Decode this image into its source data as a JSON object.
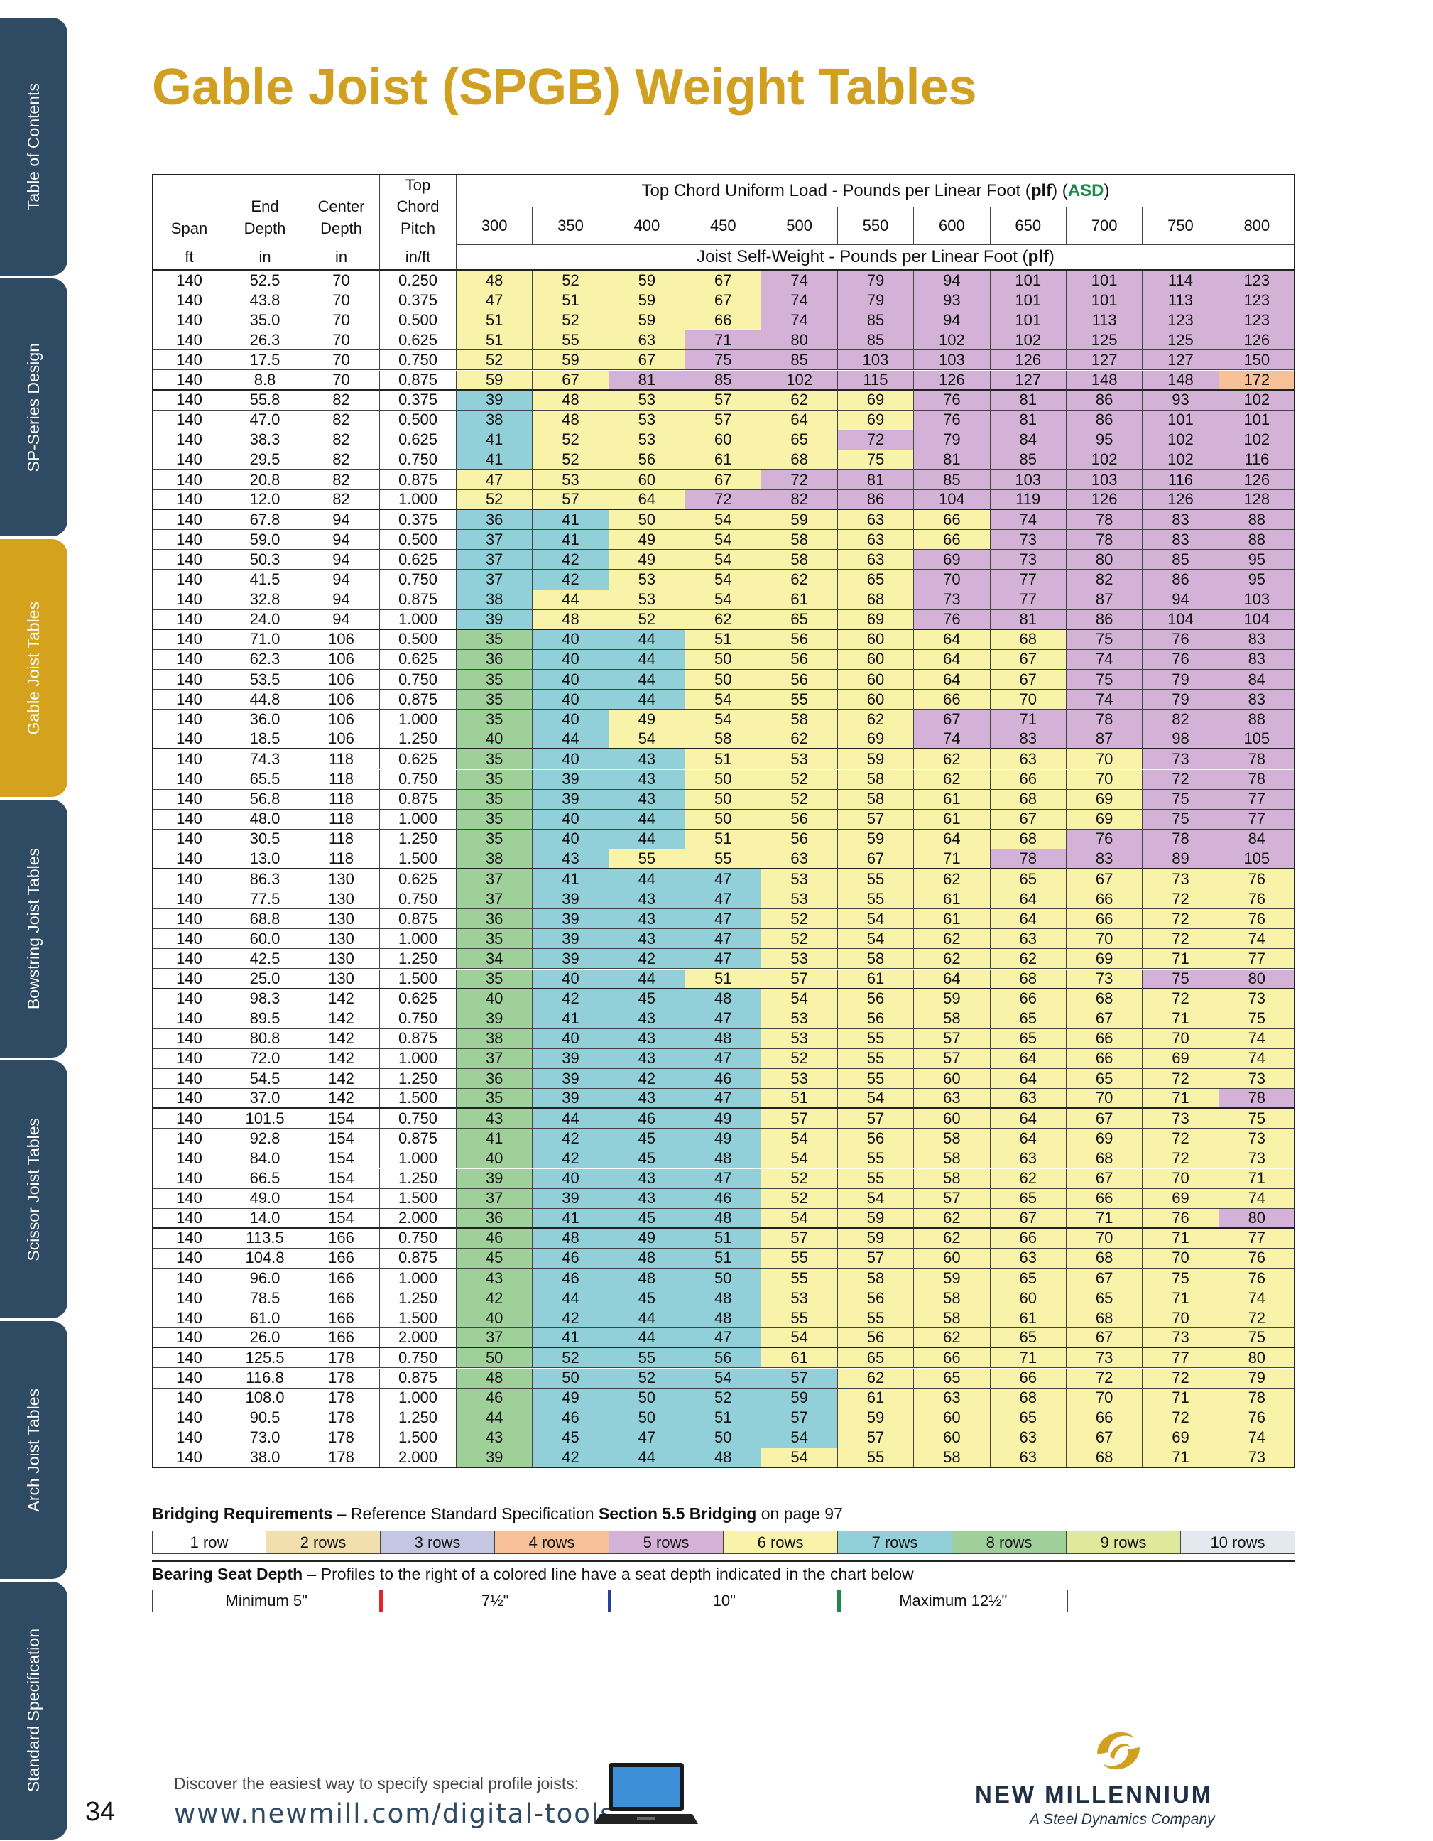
{
  "sidebar": {
    "tabs": [
      "Table of Contents",
      "SP-Series Design",
      "Gable Joist Tables",
      "Bowstring Joist Tables",
      "Scissor Joist Tables",
      "Arch Joist Tables",
      "Standard Specification"
    ],
    "active": 2
  },
  "header": {
    "title": "Gable Joist (SPGB) Weight Tables"
  },
  "table": {
    "left_headers": [
      {
        "lines": [
          "Span"
        ],
        "unit": "ft"
      },
      {
        "lines": [
          "End",
          "Depth"
        ],
        "unit": "in"
      },
      {
        "lines": [
          "Center",
          "Depth"
        ],
        "unit": "in"
      },
      {
        "lines": [
          "Top",
          "Chord",
          "Pitch"
        ],
        "unit": "in/ft"
      }
    ],
    "load_header": [
      "Top Chord Uniform Load - Pounds per Linear Foot (",
      "plf",
      ") (",
      "ASD",
      ")"
    ],
    "loads": [
      "300",
      "350",
      "400",
      "450",
      "500",
      "550",
      "600",
      "650",
      "700",
      "750",
      "800"
    ],
    "self_weight_header": [
      "Joist Self-Weight - Pounds per Linear Foot (",
      "plf",
      ")"
    ],
    "rows": [
      [
        "140",
        "52.5",
        "70",
        "0.250",
        "48",
        "52",
        "59",
        "67",
        "74",
        "79",
        "94",
        "101",
        "101",
        "114",
        "123"
      ],
      [
        "140",
        "43.8",
        "70",
        "0.375",
        "47",
        "51",
        "59",
        "67",
        "74",
        "79",
        "93",
        "101",
        "101",
        "113",
        "123"
      ],
      [
        "140",
        "35.0",
        "70",
        "0.500",
        "51",
        "52",
        "59",
        "66",
        "74",
        "85",
        "94",
        "101",
        "113",
        "123",
        "123"
      ],
      [
        "140",
        "26.3",
        "70",
        "0.625",
        "51",
        "55",
        "63",
        "71",
        "80",
        "85",
        "102",
        "102",
        "125",
        "125",
        "126"
      ],
      [
        "140",
        "17.5",
        "70",
        "0.750",
        "52",
        "59",
        "67",
        "75",
        "85",
        "103",
        "103",
        "126",
        "127",
        "127",
        "150"
      ],
      [
        "140",
        "8.8",
        "70",
        "0.875",
        "59",
        "67",
        "81",
        "85",
        "102",
        "115",
        "126",
        "127",
        "148",
        "148",
        "172"
      ],
      [
        "140",
        "55.8",
        "82",
        "0.375",
        "39",
        "48",
        "53",
        "57",
        "62",
        "69",
        "76",
        "81",
        "86",
        "93",
        "102"
      ],
      [
        "140",
        "47.0",
        "82",
        "0.500",
        "38",
        "48",
        "53",
        "57",
        "64",
        "69",
        "76",
        "81",
        "86",
        "101",
        "101"
      ],
      [
        "140",
        "38.3",
        "82",
        "0.625",
        "41",
        "52",
        "53",
        "60",
        "65",
        "72",
        "79",
        "84",
        "95",
        "102",
        "102"
      ],
      [
        "140",
        "29.5",
        "82",
        "0.750",
        "41",
        "52",
        "56",
        "61",
        "68",
        "75",
        "81",
        "85",
        "102",
        "102",
        "116"
      ],
      [
        "140",
        "20.8",
        "82",
        "0.875",
        "47",
        "53",
        "60",
        "67",
        "72",
        "81",
        "85",
        "103",
        "103",
        "116",
        "126"
      ],
      [
        "140",
        "12.0",
        "82",
        "1.000",
        "52",
        "57",
        "64",
        "72",
        "82",
        "86",
        "104",
        "119",
        "126",
        "126",
        "128"
      ],
      [
        "140",
        "67.8",
        "94",
        "0.375",
        "36",
        "41",
        "50",
        "54",
        "59",
        "63",
        "66",
        "74",
        "78",
        "83",
        "88"
      ],
      [
        "140",
        "59.0",
        "94",
        "0.500",
        "37",
        "41",
        "49",
        "54",
        "58",
        "63",
        "66",
        "73",
        "78",
        "83",
        "88"
      ],
      [
        "140",
        "50.3",
        "94",
        "0.625",
        "37",
        "42",
        "49",
        "54",
        "58",
        "63",
        "69",
        "73",
        "80",
        "85",
        "95"
      ],
      [
        "140",
        "41.5",
        "94",
        "0.750",
        "37",
        "42",
        "53",
        "54",
        "62",
        "65",
        "70",
        "77",
        "82",
        "86",
        "95"
      ],
      [
        "140",
        "32.8",
        "94",
        "0.875",
        "38",
        "44",
        "53",
        "54",
        "61",
        "68",
        "73",
        "77",
        "87",
        "94",
        "103"
      ],
      [
        "140",
        "24.0",
        "94",
        "1.000",
        "39",
        "48",
        "52",
        "62",
        "65",
        "69",
        "76",
        "81",
        "86",
        "104",
        "104"
      ],
      [
        "140",
        "71.0",
        "106",
        "0.500",
        "35",
        "40",
        "44",
        "51",
        "56",
        "60",
        "64",
        "68",
        "75",
        "76",
        "83"
      ],
      [
        "140",
        "62.3",
        "106",
        "0.625",
        "36",
        "40",
        "44",
        "50",
        "56",
        "60",
        "64",
        "67",
        "74",
        "76",
        "83"
      ],
      [
        "140",
        "53.5",
        "106",
        "0.750",
        "35",
        "40",
        "44",
        "50",
        "56",
        "60",
        "64",
        "67",
        "75",
        "79",
        "84"
      ],
      [
        "140",
        "44.8",
        "106",
        "0.875",
        "35",
        "40",
        "44",
        "54",
        "55",
        "60",
        "66",
        "70",
        "74",
        "79",
        "83"
      ],
      [
        "140",
        "36.0",
        "106",
        "1.000",
        "35",
        "40",
        "49",
        "54",
        "58",
        "62",
        "67",
        "71",
        "78",
        "82",
        "88"
      ],
      [
        "140",
        "18.5",
        "106",
        "1.250",
        "40",
        "44",
        "54",
        "58",
        "62",
        "69",
        "74",
        "83",
        "87",
        "98",
        "105"
      ],
      [
        "140",
        "74.3",
        "118",
        "0.625",
        "35",
        "40",
        "43",
        "51",
        "53",
        "59",
        "62",
        "63",
        "70",
        "73",
        "78"
      ],
      [
        "140",
        "65.5",
        "118",
        "0.750",
        "35",
        "39",
        "43",
        "50",
        "52",
        "58",
        "62",
        "66",
        "70",
        "72",
        "78"
      ],
      [
        "140",
        "56.8",
        "118",
        "0.875",
        "35",
        "39",
        "43",
        "50",
        "52",
        "58",
        "61",
        "68",
        "69",
        "75",
        "77"
      ],
      [
        "140",
        "48.0",
        "118",
        "1.000",
        "35",
        "40",
        "44",
        "50",
        "56",
        "57",
        "61",
        "67",
        "69",
        "75",
        "77"
      ],
      [
        "140",
        "30.5",
        "118",
        "1.250",
        "35",
        "40",
        "44",
        "51",
        "56",
        "59",
        "64",
        "68",
        "76",
        "78",
        "84"
      ],
      [
        "140",
        "13.0",
        "118",
        "1.500",
        "38",
        "43",
        "55",
        "55",
        "63",
        "67",
        "71",
        "78",
        "83",
        "89",
        "105"
      ],
      [
        "140",
        "86.3",
        "130",
        "0.625",
        "37",
        "41",
        "44",
        "47",
        "53",
        "55",
        "62",
        "65",
        "67",
        "73",
        "76"
      ],
      [
        "140",
        "77.5",
        "130",
        "0.750",
        "37",
        "39",
        "43",
        "47",
        "53",
        "55",
        "61",
        "64",
        "66",
        "72",
        "76"
      ],
      [
        "140",
        "68.8",
        "130",
        "0.875",
        "36",
        "39",
        "43",
        "47",
        "52",
        "54",
        "61",
        "64",
        "66",
        "72",
        "76"
      ],
      [
        "140",
        "60.0",
        "130",
        "1.000",
        "35",
        "39",
        "43",
        "47",
        "52",
        "54",
        "62",
        "63",
        "70",
        "72",
        "74"
      ],
      [
        "140",
        "42.5",
        "130",
        "1.250",
        "34",
        "39",
        "42",
        "47",
        "53",
        "58",
        "62",
        "62",
        "69",
        "71",
        "77"
      ],
      [
        "140",
        "25.0",
        "130",
        "1.500",
        "35",
        "40",
        "44",
        "51",
        "57",
        "61",
        "64",
        "68",
        "73",
        "75",
        "80"
      ],
      [
        "140",
        "98.3",
        "142",
        "0.625",
        "40",
        "42",
        "45",
        "48",
        "54",
        "56",
        "59",
        "66",
        "68",
        "72",
        "73"
      ],
      [
        "140",
        "89.5",
        "142",
        "0.750",
        "39",
        "41",
        "43",
        "47",
        "53",
        "56",
        "58",
        "65",
        "67",
        "71",
        "75"
      ],
      [
        "140",
        "80.8",
        "142",
        "0.875",
        "38",
        "40",
        "43",
        "48",
        "53",
        "55",
        "57",
        "65",
        "66",
        "70",
        "74"
      ],
      [
        "140",
        "72.0",
        "142",
        "1.000",
        "37",
        "39",
        "43",
        "47",
        "52",
        "55",
        "57",
        "64",
        "66",
        "69",
        "74"
      ],
      [
        "140",
        "54.5",
        "142",
        "1.250",
        "36",
        "39",
        "42",
        "46",
        "53",
        "55",
        "60",
        "64",
        "65",
        "72",
        "73"
      ],
      [
        "140",
        "37.0",
        "142",
        "1.500",
        "35",
        "39",
        "43",
        "47",
        "51",
        "54",
        "63",
        "63",
        "70",
        "71",
        "78"
      ],
      [
        "140",
        "101.5",
        "154",
        "0.750",
        "43",
        "44",
        "46",
        "49",
        "57",
        "57",
        "60",
        "64",
        "67",
        "73",
        "75"
      ],
      [
        "140",
        "92.8",
        "154",
        "0.875",
        "41",
        "42",
        "45",
        "49",
        "54",
        "56",
        "58",
        "64",
        "69",
        "72",
        "73"
      ],
      [
        "140",
        "84.0",
        "154",
        "1.000",
        "40",
        "42",
        "45",
        "48",
        "54",
        "55",
        "58",
        "63",
        "68",
        "72",
        "73"
      ],
      [
        "140",
        "66.5",
        "154",
        "1.250",
        "39",
        "40",
        "43",
        "47",
        "52",
        "55",
        "58",
        "62",
        "67",
        "70",
        "71"
      ],
      [
        "140",
        "49.0",
        "154",
        "1.500",
        "37",
        "39",
        "43",
        "46",
        "52",
        "54",
        "57",
        "65",
        "66",
        "69",
        "74"
      ],
      [
        "140",
        "14.0",
        "154",
        "2.000",
        "36",
        "41",
        "45",
        "48",
        "54",
        "59",
        "62",
        "67",
        "71",
        "76",
        "80"
      ],
      [
        "140",
        "113.5",
        "166",
        "0.750",
        "46",
        "48",
        "49",
        "51",
        "57",
        "59",
        "62",
        "66",
        "70",
        "71",
        "77"
      ],
      [
        "140",
        "104.8",
        "166",
        "0.875",
        "45",
        "46",
        "48",
        "51",
        "55",
        "57",
        "60",
        "63",
        "68",
        "70",
        "76"
      ],
      [
        "140",
        "96.0",
        "166",
        "1.000",
        "43",
        "46",
        "48",
        "50",
        "55",
        "58",
        "59",
        "65",
        "67",
        "75",
        "76"
      ],
      [
        "140",
        "78.5",
        "166",
        "1.250",
        "42",
        "44",
        "45",
        "48",
        "53",
        "56",
        "58",
        "60",
        "65",
        "71",
        "74"
      ],
      [
        "140",
        "61.0",
        "166",
        "1.500",
        "40",
        "42",
        "44",
        "48",
        "55",
        "55",
        "58",
        "61",
        "68",
        "70",
        "72"
      ],
      [
        "140",
        "26.0",
        "166",
        "2.000",
        "37",
        "41",
        "44",
        "47",
        "54",
        "56",
        "62",
        "65",
        "67",
        "73",
        "75"
      ],
      [
        "140",
        "125.5",
        "178",
        "0.750",
        "50",
        "52",
        "55",
        "56",
        "61",
        "65",
        "66",
        "71",
        "73",
        "77",
        "80"
      ],
      [
        "140",
        "116.8",
        "178",
        "0.875",
        "48",
        "50",
        "52",
        "54",
        "57",
        "62",
        "65",
        "66",
        "72",
        "72",
        "79"
      ],
      [
        "140",
        "108.0",
        "178",
        "1.000",
        "46",
        "49",
        "50",
        "52",
        "59",
        "61",
        "63",
        "68",
        "70",
        "71",
        "78"
      ],
      [
        "140",
        "90.5",
        "178",
        "1.250",
        "44",
        "46",
        "50",
        "51",
        "57",
        "59",
        "60",
        "65",
        "66",
        "72",
        "76"
      ],
      [
        "140",
        "73.0",
        "178",
        "1.500",
        "43",
        "45",
        "47",
        "50",
        "54",
        "57",
        "60",
        "63",
        "67",
        "69",
        "74"
      ],
      [
        "140",
        "38.0",
        "178",
        "2.000",
        "39",
        "42",
        "44",
        "48",
        "54",
        "55",
        "58",
        "63",
        "68",
        "71",
        "73"
      ]
    ],
    "shades": [
      "ffffeeeeeee",
      "ffffeeeeeee",
      "ffffeeeeeee",
      "fffeeeeeeee",
      "fffeeeeeeee",
      "ffeeeeeeeed",
      "gfffffeeeee",
      "gfffffeeeee",
      "gffffeeeeee",
      "gfffffeeeee",
      "ffffeeeeeee",
      "fffeeeeeeee",
      "ggfffffeeee",
      "ggfffffeeee",
      "ggffffeeeee",
      "ggffffeeeee",
      "gfffffeeeee",
      "gfffffeeeee",
      "hggfffffeee",
      "hggfffffeee",
      "hggfffffeee",
      "hggfffffeee",
      "hgffffeeeee",
      "hgffffeeeee",
      "hggffffffee",
      "hggffffffee",
      "hggffffffee",
      "hggffffffee",
      "hggfffffeee",
      "hgfffffeeee",
      "hgggfffffff",
      "hgggfffffff",
      "hgggfffffff",
      "hgggfffffff",
      "hgggfffffff",
      "hggffffffee",
      "hgggfffffff",
      "hgggfffffff",
      "hgggfffffff",
      "hgggfffffff",
      "hgggfffffff",
      "hgggffffffe",
      "hgggfffffff",
      "hgggfffffff",
      "hgggfffffff",
      "hgggfffffff",
      "hgggfffffff",
      "hgggffffffe",
      "hgggfffffff",
      "hgggfffffff",
      "hgggfffffff",
      "hgggfffffff",
      "hgggfffffff",
      "hgggfffffff",
      "hgggfffffff",
      "hggggffffff",
      "hggggffffff",
      "hggggffffff",
      "hggggffffff",
      "hgggfffffff"
    ]
  },
  "bridging": {
    "title": [
      "Bridging Requirements",
      " – Reference Standard Specification ",
      "Section 5.5 Bridging",
      " on page 97"
    ],
    "items": [
      {
        "label": "1 row",
        "color": "#ffffff"
      },
      {
        "label": "2 rows",
        "color": "#f2dfae"
      },
      {
        "label": "3 rows",
        "color": "#c3c7e2"
      },
      {
        "label": "4 rows",
        "color": "#f7c096"
      },
      {
        "label": "5 rows",
        "color": "#d4b1d6"
      },
      {
        "label": "6 rows",
        "color": "#f8f3a8"
      },
      {
        "label": "7 rows",
        "color": "#91d0d9"
      },
      {
        "label": "8 rows",
        "color": "#9fd09a"
      },
      {
        "label": "9 rows",
        "color": "#dfe99b"
      },
      {
        "label": "10 rows",
        "color": "#e4e9ef"
      }
    ]
  },
  "bearing": {
    "title": [
      "Bearing Seat Depth",
      " – Profiles to the right of a colored line have a seat depth indicated in the chart below"
    ],
    "items": [
      "Minimum 5\"",
      "7½\"",
      "10\"",
      "Maximum 12½\""
    ],
    "line_colors": [
      "#e0262c",
      "#2a3f9b",
      "#1e8a4a"
    ]
  },
  "footer": {
    "page": "34",
    "tagline": "Discover the easiest way to specify special profile joists:",
    "url": "www.newmill.com/digital-tools",
    "brand": "NEW MILLENNIUM",
    "company": "A Steel Dynamics Company"
  }
}
